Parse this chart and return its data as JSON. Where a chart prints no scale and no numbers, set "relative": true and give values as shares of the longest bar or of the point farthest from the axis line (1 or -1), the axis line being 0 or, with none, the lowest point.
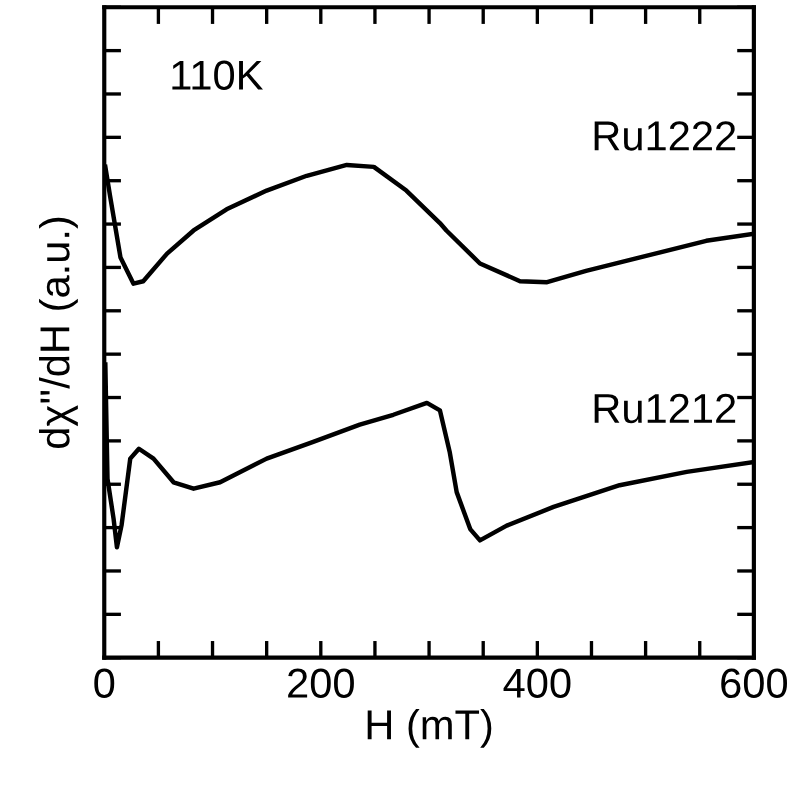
{
  "chart_data": {
    "type": "line",
    "relative": true,
    "xlabel": "H (mT)",
    "ylabel": "dχ''/dH (a.u.)",
    "annotations": [
      "110K"
    ],
    "xlim": [
      0,
      600
    ],
    "xticks": [
      0,
      {
        "value": 50,
        "label": null
      },
      {
        "value": 100,
        "label": null
      },
      {
        "value": 150,
        "label": null
      },
      200,
      {
        "value": 250,
        "label": null
      },
      {
        "value": 300,
        "label": null
      },
      {
        "value": 350,
        "label": null
      },
      400,
      {
        "value": 450,
        "label": null
      },
      {
        "value": 500,
        "label": null
      },
      {
        "value": 550,
        "label": null
      },
      600
    ],
    "tick_labels": "x",
    "grid": false,
    "legend": "right",
    "marker": "none",
    "line_style": "solid",
    "series": [
      {
        "name": "Ru1222",
        "color": "#000000",
        "x": [
          1,
          5.5,
          15,
          27,
          36,
          58,
          82.5,
          113,
          150,
          187,
          224,
          249,
          279,
          310,
          316,
          347,
          384,
          409,
          445,
          507,
          556,
          599
        ],
        "values": [
          0.996,
          0.935,
          0.812,
          0.759,
          0.764,
          0.82,
          0.867,
          0.91,
          0.948,
          0.978,
          1.0,
          0.996,
          0.948,
          0.882,
          0.867,
          0.8,
          0.764,
          0.762,
          0.785,
          0.819,
          0.846,
          0.86
        ]
      },
      {
        "name": "Ru1212",
        "color": "#000000",
        "x": [
          1,
          3,
          8.6,
          11.7,
          16,
          24,
          32,
          45.5,
          64,
          82.5,
          107,
          150,
          193,
          236,
          267,
          298,
          310,
          319,
          325.5,
          338,
          347,
          371.7,
          415,
          476,
          538,
          599
        ],
        "values": [
          0.595,
          0.363,
          0.282,
          0.224,
          0.269,
          0.404,
          0.424,
          0.404,
          0.356,
          0.343,
          0.356,
          0.404,
          0.438,
          0.473,
          0.493,
          0.517,
          0.502,
          0.418,
          0.336,
          0.261,
          0.238,
          0.268,
          0.306,
          0.35,
          0.377,
          0.397
        ]
      }
    ]
  }
}
